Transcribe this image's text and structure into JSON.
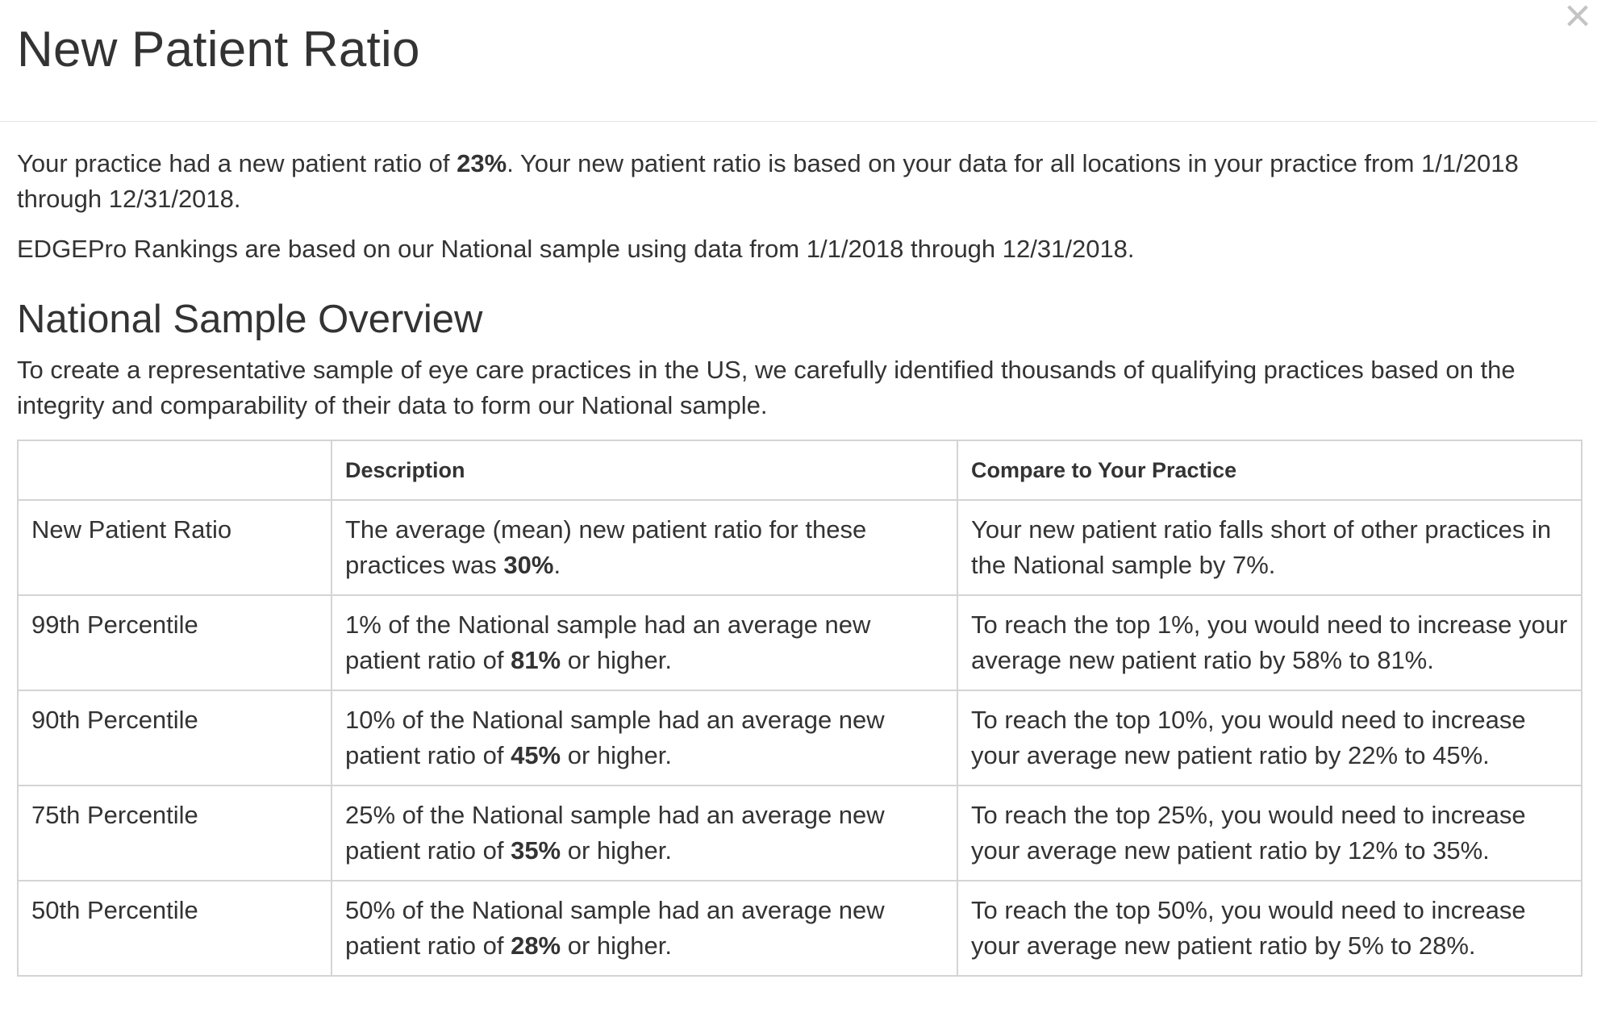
{
  "modal": {
    "title": "New Patient Ratio",
    "close_label": "×"
  },
  "intro": {
    "text_before": "Your practice had a new patient ratio of ",
    "ratio": "23%",
    "text_after": ". Your new patient ratio is based on your data for all locations in your practice from 1/1/2018 through 12/31/2018.",
    "rankings": "EDGEPro Rankings are based on our National sample using data from 1/1/2018 through 12/31/2018."
  },
  "overview": {
    "title": "National Sample Overview",
    "description": "To create a representative sample of eye care practices in the US, we carefully identified thousands of qualifying practices based on the integrity and comparability of their data to form our National sample.",
    "table": {
      "headers": [
        "",
        "Description",
        "Compare to Your Practice"
      ],
      "rows": [
        {
          "label": "New Patient Ratio",
          "desc_before": "The average (mean) new patient ratio for these practices was ",
          "desc_value": "30%",
          "desc_after": ".",
          "compare": "Your new patient ratio falls short of other practices in the National sample by 7%."
        },
        {
          "label": "99th Percentile",
          "desc_before": "1% of the National sample had an average new patient ratio of ",
          "desc_value": "81%",
          "desc_after": " or higher.",
          "compare": "To reach the top 1%, you would need to increase your average new patient ratio by 58% to 81%."
        },
        {
          "label": "90th Percentile",
          "desc_before": "10% of the National sample had an average new patient ratio of ",
          "desc_value": "45%",
          "desc_after": " or higher.",
          "compare": "To reach the top 10%, you would need to increase your average new patient ratio by 22% to 45%."
        },
        {
          "label": "75th Percentile",
          "desc_before": "25% of the National sample had an average new patient ratio of ",
          "desc_value": "35%",
          "desc_after": " or higher.",
          "compare": "To reach the top 25%, you would need to increase your average new patient ratio by 12% to 35%."
        },
        {
          "label": "50th Percentile",
          "desc_before": "50% of the National sample had an average new patient ratio of ",
          "desc_value": "28%",
          "desc_after": " or higher.",
          "compare": "To reach the top 50%, you would need to increase your average new patient ratio by 5% to 28%."
        }
      ]
    }
  },
  "colors": {
    "text": "#333333",
    "border": "#d4d4d4",
    "close_icon": "#c4c4c4"
  },
  "icons": {
    "close": "close-icon"
  }
}
